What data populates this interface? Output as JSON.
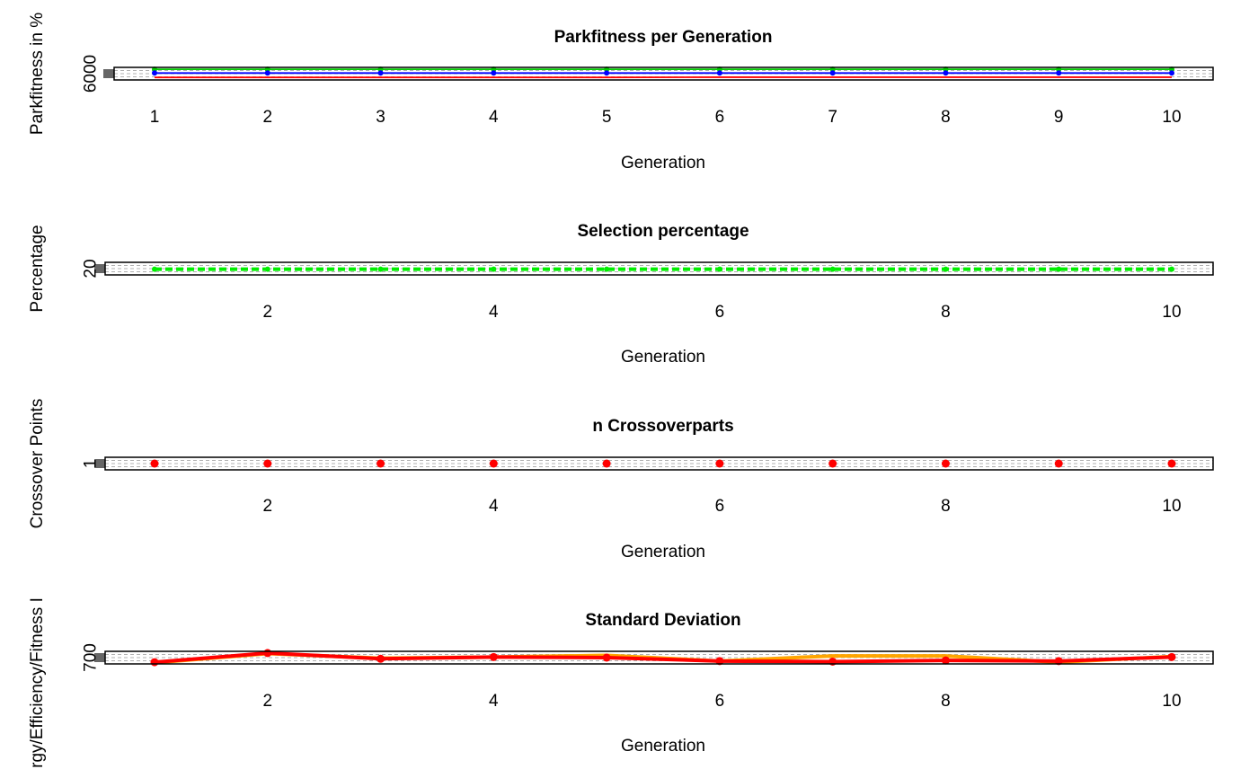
{
  "figure": {
    "background": "#ffffff",
    "frame_color": "#000000",
    "grid_color": "#b0b0b0"
  },
  "chart_data": [
    {
      "type": "line",
      "title": "Parkfitness per Generation",
      "xlabel": "Generation",
      "ylabel": "Parkfitness in %",
      "x": [
        1,
        2,
        3,
        4,
        5,
        6,
        7,
        8,
        9,
        10
      ],
      "x_ticks": [
        1,
        2,
        3,
        4,
        5,
        6,
        7,
        8,
        9,
        10
      ],
      "y_ticks": [
        6000
      ],
      "ylim": [
        5990,
        6090
      ],
      "grid": true,
      "series": [
        {
          "color": "#00cc00",
          "line": "solid",
          "marker": "point",
          "values": [
            6075,
            6075,
            6075,
            6075,
            6075,
            6075,
            6075,
            6075,
            6075,
            6075
          ]
        },
        {
          "color": "#0000ff",
          "line": "solid",
          "marker": "point",
          "values": [
            6045,
            6045,
            6045,
            6045,
            6045,
            6045,
            6045,
            6045,
            6045,
            6045
          ]
        },
        {
          "color": "#ff0000",
          "line": "solid",
          "marker": "none",
          "values": [
            6010,
            6010,
            6010,
            6010,
            6010,
            6012,
            6012,
            6012,
            6012,
            6012
          ]
        }
      ]
    },
    {
      "type": "line",
      "title": "Selection percentage",
      "xlabel": "Generation",
      "ylabel": "Percentage",
      "x": [
        1,
        2,
        3,
        4,
        5,
        6,
        7,
        8,
        9,
        10
      ],
      "x_ticks": [
        2,
        4,
        6,
        8,
        10
      ],
      "y_ticks": [
        20
      ],
      "ylim": [
        19.5,
        20.6
      ],
      "grid": true,
      "series": [
        {
          "color": "#00ee00",
          "line": "dashed",
          "marker": "point",
          "values": [
            20,
            20,
            20,
            20,
            20,
            20,
            20,
            20,
            20,
            20
          ]
        }
      ]
    },
    {
      "type": "line",
      "title": "n Crossoverparts",
      "xlabel": "Generation",
      "ylabel": "Crossover Points",
      "x": [
        1,
        2,
        3,
        4,
        5,
        6,
        7,
        8,
        9,
        10
      ],
      "x_ticks": [
        2,
        4,
        6,
        8,
        10
      ],
      "y_ticks": [
        1
      ],
      "ylim": [
        0.95,
        1.05
      ],
      "grid": true,
      "series": [
        {
          "color": "#ff0000",
          "line": "none",
          "marker": "point",
          "values": [
            1,
            1,
            1,
            1,
            1,
            1,
            1,
            1,
            1,
            1
          ]
        }
      ]
    },
    {
      "type": "line",
      "title": "Standard Deviation",
      "xlabel": "Generation",
      "ylabel": "rgy/Efficiency/Fitness I",
      "x": [
        1,
        2,
        3,
        4,
        5,
        6,
        7,
        8,
        9,
        10
      ],
      "x_ticks": [
        2,
        4,
        6,
        8,
        10
      ],
      "y_ticks": [
        700
      ],
      "ylim": [
        698,
        720
      ],
      "grid": true,
      "series": [
        {
          "color": "#ffa500",
          "line": "solid",
          "marker": "none",
          "values": [
            700,
            716,
            708,
            710,
            713,
            703,
            712,
            712,
            701,
            711
          ]
        },
        {
          "color": "#ff0000",
          "line": "solid",
          "marker": "point",
          "values": [
            701,
            717,
            707,
            710,
            709,
            703,
            702,
            704,
            703,
            710
          ]
        }
      ]
    }
  ]
}
